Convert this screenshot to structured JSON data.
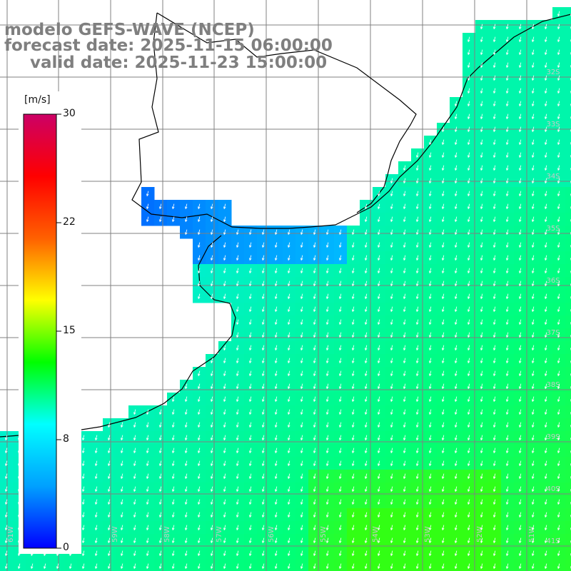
{
  "header": {
    "model": "modelo GEFS-WAVE (NCEP)",
    "forecast": "forecast date: 2025-11-15 06:00:00",
    "valid": "valid date: 2025-11-23 15:00:00"
  },
  "colorbar": {
    "unit": "[m/s]",
    "ticks": [
      "30",
      "22",
      "15",
      "8",
      "0"
    ],
    "min": 0,
    "max": 30,
    "colors": [
      "#0000ff",
      "#00a0ff",
      "#00ffff",
      "#00ff00",
      "#ffff00",
      "#ff6000",
      "#ff0000",
      "#cc0066"
    ]
  },
  "lat_labels": [
    "32S",
    "33S",
    "34S",
    "35S",
    "36S",
    "37S",
    "38S",
    "39S",
    "40S",
    "41S"
  ],
  "lon_labels": [
    "61W",
    "60W",
    "59W",
    "58W",
    "57W",
    "56W",
    "55W",
    "54W",
    "53W",
    "52W",
    "51W"
  ],
  "field": {
    "variable": "wind speed",
    "arrow_direction": "toward south / south-southeast",
    "land_color": "#ffffff",
    "grid_color": "#808080",
    "coast_color": "#000000"
  }
}
